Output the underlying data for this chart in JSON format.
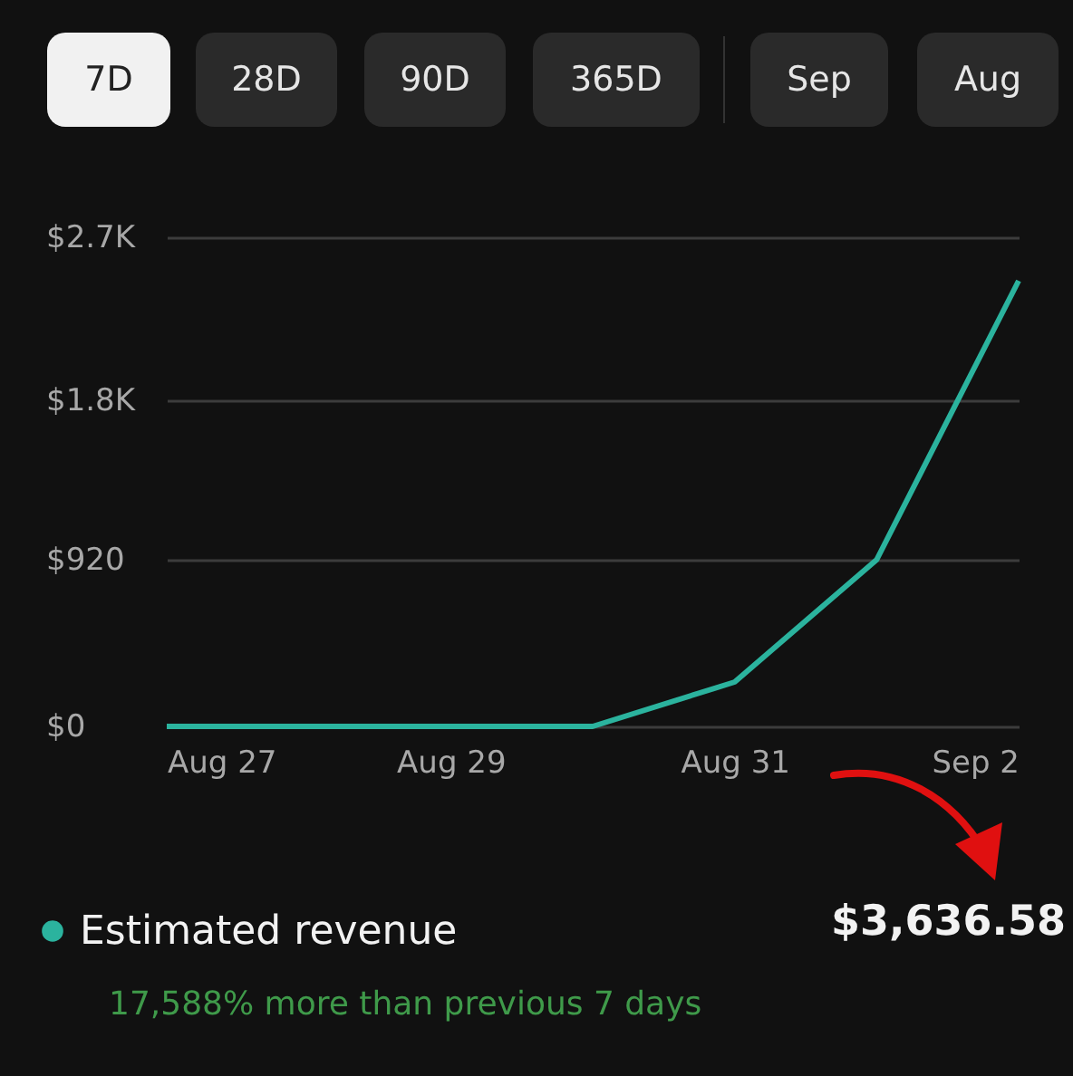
{
  "chart_data": {
    "type": "line",
    "x": [
      "--08-27",
      "--08-28",
      "--08-29",
      "--08-30",
      "--08-31",
      "--09-01",
      "--09-02"
    ],
    "xlim": [
      "--08-27",
      "--09-02"
    ],
    "xticks": [
      {
        "value": "--08-27",
        "label": "Aug 27"
      },
      {
        "value": "--08-29",
        "label": "Aug 29"
      },
      {
        "value": "--08-31",
        "label": "Aug 31"
      },
      {
        "value": "--09-02",
        "label": "Sep 2"
      }
    ],
    "ylim": [
      0,
      2700
    ],
    "yticks": [
      {
        "value": 0,
        "label": "$0"
      },
      {
        "value": 920,
        "label": "$920"
      },
      {
        "value": 1800,
        "label": "$1.8K"
      },
      {
        "value": 2700,
        "label": "$2.7K"
      }
    ],
    "series": [
      {
        "name": "Estimated revenue",
        "color": "#2bb39e",
        "values": [
          0,
          0,
          0,
          0,
          245,
          920,
          2460
        ]
      }
    ],
    "grid": "y",
    "legend": "bottom",
    "marker": "none",
    "line_style": "solid",
    "annotations": [
      "7D",
      "28D",
      "90D",
      "365D",
      "Sep",
      "Aug",
      "$3,636.58",
      "17,588% more than previous 7 days"
    ]
  }
}
